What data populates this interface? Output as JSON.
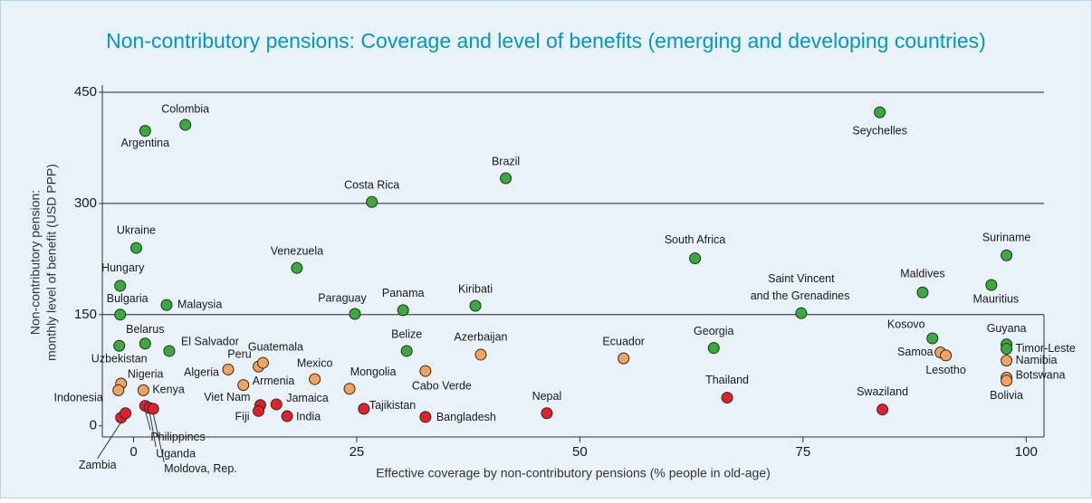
{
  "chart_data": {
    "type": "scatter",
    "title": "Non-contributory pensions: Coverage and level of benefits (emerging and developing countries)",
    "xlabel": "Effective coverage by non-contributory pensions (% people in old-age)",
    "ylabel": [
      "Non-contributory pension:",
      "monthly level of benefit (USD PPP)"
    ],
    "xlim": [
      -3.5,
      102
    ],
    "ylim": [
      -15,
      450
    ],
    "xticks": [
      0,
      25,
      50,
      75,
      100
    ],
    "yticks": [
      0,
      150,
      300,
      450
    ],
    "grid": true,
    "series": [
      {
        "color": "#3aaa3a",
        "labels": [
          "Argentina",
          "Colombia",
          "Seychelles",
          "Brazil",
          "Costa Rica",
          "Ukraine",
          "Venezuela",
          "South Africa",
          "Suriname",
          "Hungary",
          "Malaysia",
          "Bulgaria",
          "Paraguay",
          "Panama",
          "Kiribati",
          "Saint Vincent and the Grenadines",
          "Maldives",
          "Mauritius",
          "Belarus",
          "Uzbekistan",
          "El Salvador",
          "Belize",
          "Georgia",
          "Kosovo",
          "Guyana",
          "Timor-Leste"
        ],
        "x": [
          1.3,
          5.8,
          83.6,
          41.7,
          26.7,
          0.3,
          18.3,
          62.9,
          97.8,
          -1.5,
          3.7,
          -1.5,
          24.8,
          30.2,
          38.3,
          74.8,
          88.4,
          96.1,
          1.3,
          -1.6,
          4.0,
          30.6,
          65.0,
          89.5,
          97.8,
          97.8
        ],
        "values": [
          398,
          406,
          423,
          334,
          302,
          240,
          213,
          226,
          230,
          189,
          163,
          150,
          151,
          156,
          162,
          152,
          180,
          190,
          111,
          108,
          101,
          101,
          105,
          118,
          110,
          104
        ]
      },
      {
        "color": "#f5a35c",
        "labels": [
          "Peru",
          "Guatemala",
          "Algeria",
          "Armenia",
          "Mexico",
          "Azerbaijan",
          "Mongolia",
          "Cabo Verde",
          "Ecuador",
          "Samoa",
          "Lesotho",
          "Namibia",
          "Botswana",
          "Bolivia",
          "Nigeria",
          "Indonesia",
          "Kenya"
        ],
        "x": [
          14.0,
          14.5,
          10.6,
          12.3,
          20.3,
          38.9,
          24.2,
          32.7,
          54.9,
          90.4,
          91.0,
          97.8,
          97.8,
          97.8,
          -1.4,
          -1.7,
          1.1
        ],
        "values": [
          80,
          85,
          76,
          55,
          63,
          96,
          50,
          74,
          91,
          99,
          95,
          88,
          65,
          61,
          57,
          48,
          48
        ]
      },
      {
        "color": "#e2202a",
        "labels": [
          "Philippines",
          "Uganda",
          "Moldova, Rep.",
          "Zambia",
          null,
          "Viet Nam",
          "Fiji",
          "Jamaica",
          "India",
          "Tajikistan",
          "Bangladesh",
          "Nepal",
          "Thailand",
          "Swaziland"
        ],
        "x": [
          1.3,
          1.8,
          2.2,
          -1.4,
          -0.9,
          14.2,
          14.0,
          16.0,
          17.2,
          25.8,
          32.7,
          46.3,
          66.5,
          83.9
        ],
        "values": [
          27,
          24,
          23,
          11,
          17,
          28,
          20,
          29,
          13,
          23,
          12,
          17,
          38,
          22
        ]
      }
    ]
  }
}
